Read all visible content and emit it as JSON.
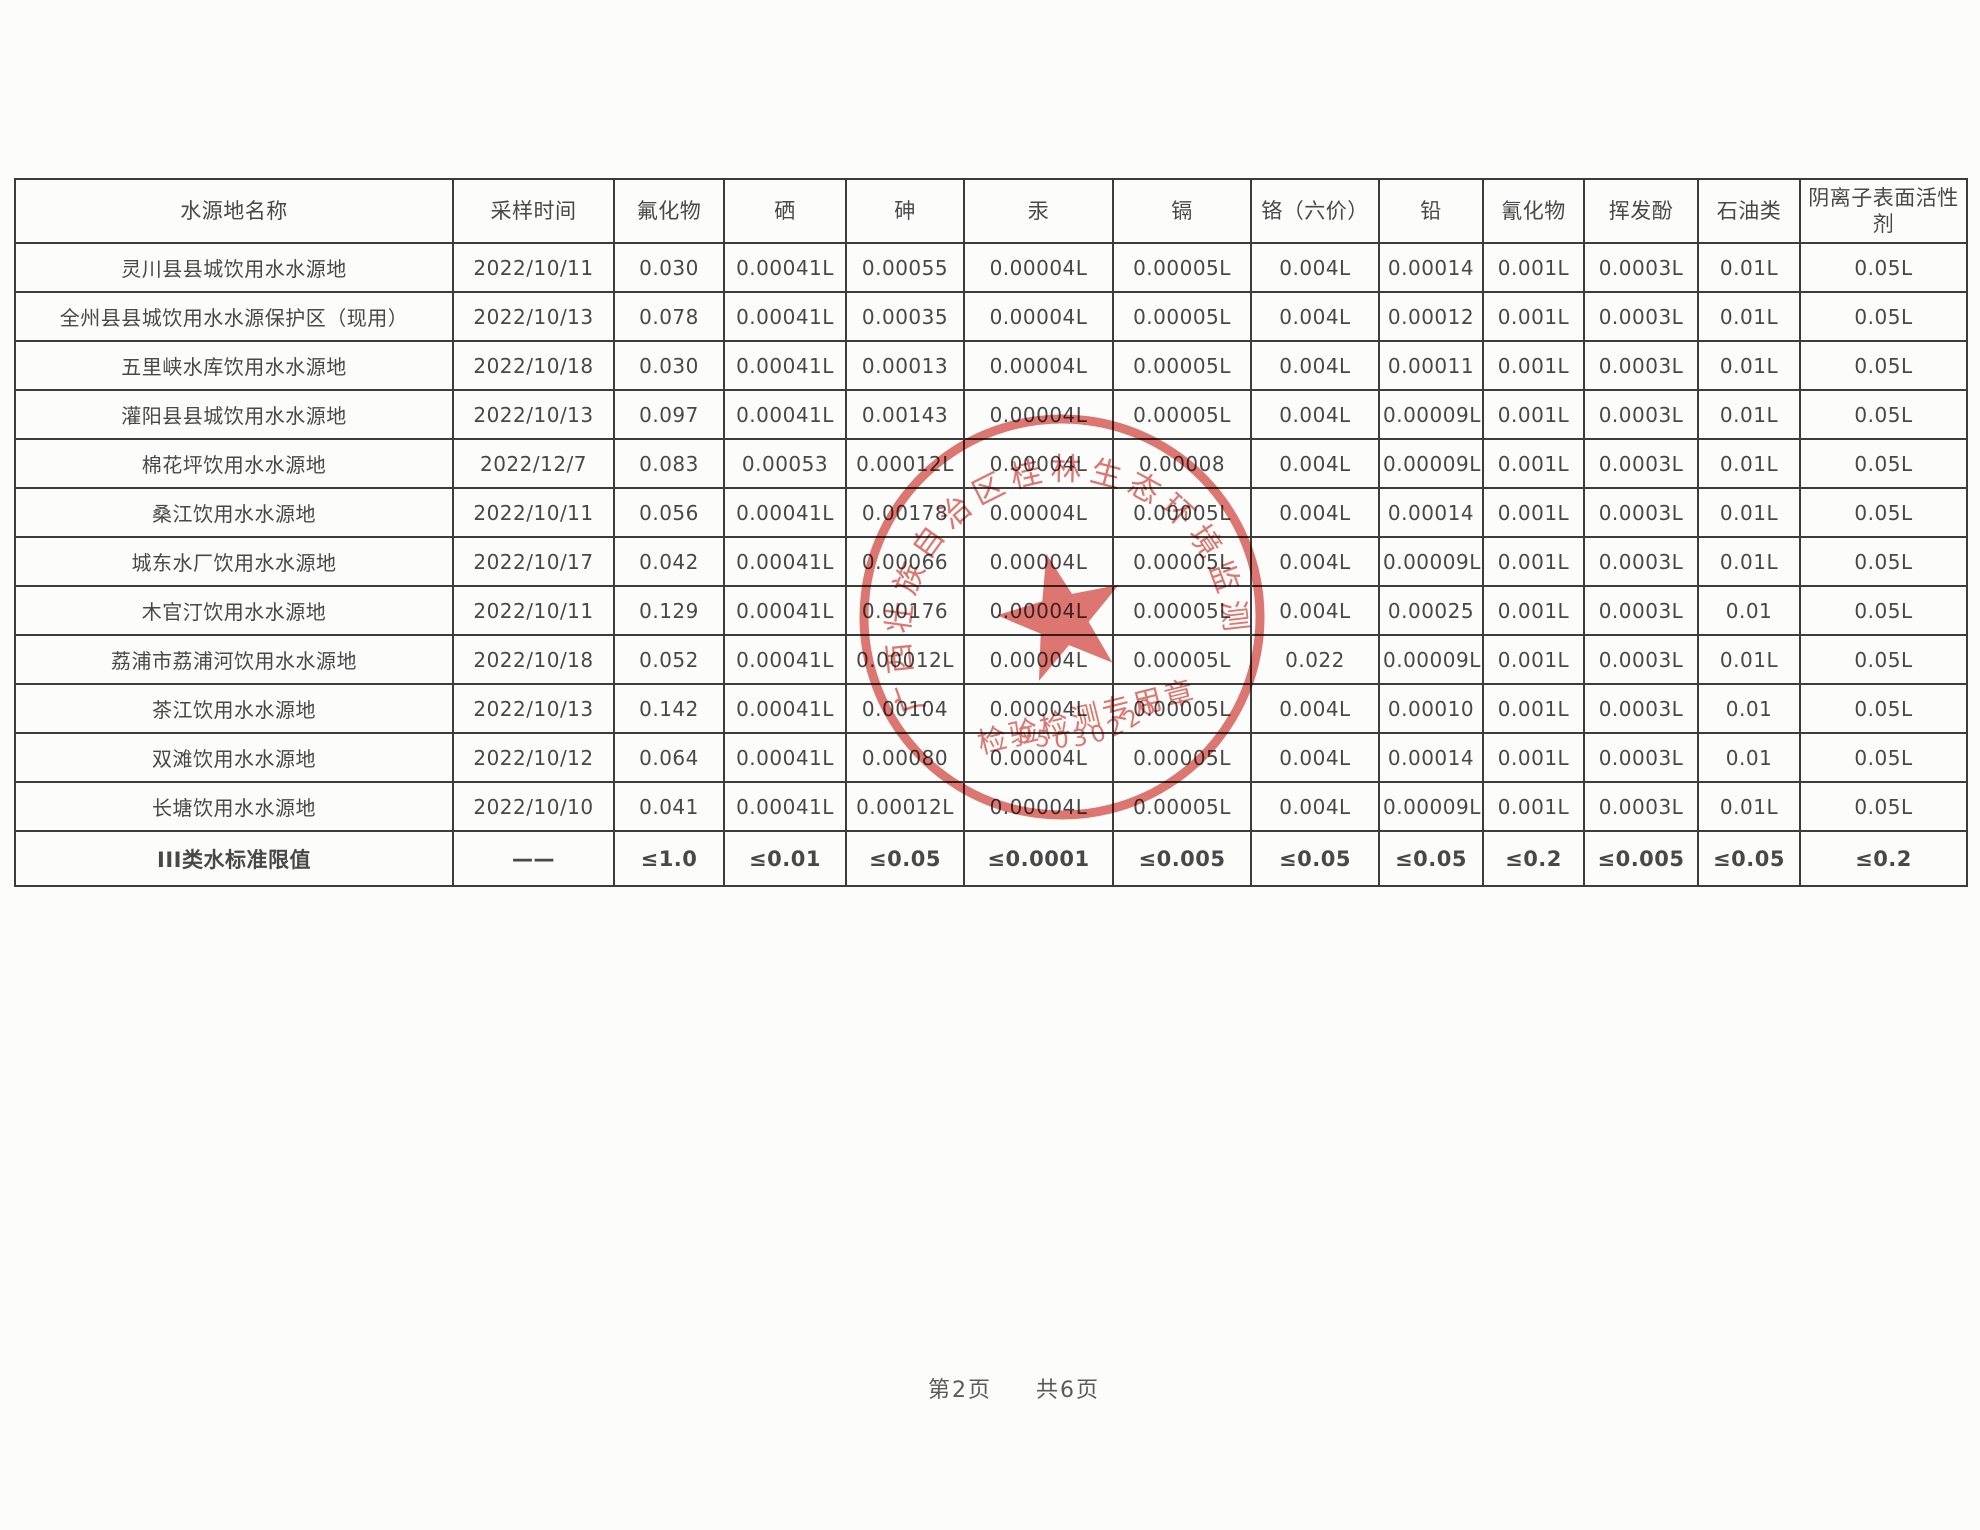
{
  "table": {
    "columns": [
      "水源地名称",
      "采样时间",
      "氟化物",
      "硒",
      "砷",
      "汞",
      "镉",
      "铬（六价）",
      "铅",
      "氰化物",
      "挥发酚",
      "石油类",
      "阴离子表面活性剂"
    ],
    "rows": [
      {
        "name": "灵川县县城饮用水水源地",
        "date": "2022/10/11",
        "values": [
          "0.030",
          "0.00041L",
          "0.00055",
          "0.00004L",
          "0.00005L",
          "0.004L",
          "0.00014",
          "0.001L",
          "0.0003L",
          "0.01L",
          "0.05L"
        ]
      },
      {
        "name": "全州县县城饮用水水源保护区（现用）",
        "date": "2022/10/13",
        "values": [
          "0.078",
          "0.00041L",
          "0.00035",
          "0.00004L",
          "0.00005L",
          "0.004L",
          "0.00012",
          "0.001L",
          "0.0003L",
          "0.01L",
          "0.05L"
        ]
      },
      {
        "name": "五里峡水库饮用水水源地",
        "date": "2022/10/18",
        "values": [
          "0.030",
          "0.00041L",
          "0.00013",
          "0.00004L",
          "0.00005L",
          "0.004L",
          "0.00011",
          "0.001L",
          "0.0003L",
          "0.01L",
          "0.05L"
        ]
      },
      {
        "name": "灌阳县县城饮用水水源地",
        "date": "2022/10/13",
        "values": [
          "0.097",
          "0.00041L",
          "0.00143",
          "0.00004L",
          "0.00005L",
          "0.004L",
          "0.00009L",
          "0.001L",
          "0.0003L",
          "0.01L",
          "0.05L"
        ]
      },
      {
        "name": "棉花坪饮用水水源地",
        "date": "2022/12/7",
        "values": [
          "0.083",
          "0.00053",
          "0.00012L",
          "0.00004L",
          "0.00008",
          "0.004L",
          "0.00009L",
          "0.001L",
          "0.0003L",
          "0.01L",
          "0.05L"
        ]
      },
      {
        "name": "桑江饮用水水源地",
        "date": "2022/10/11",
        "values": [
          "0.056",
          "0.00041L",
          "0.00178",
          "0.00004L",
          "0.00005L",
          "0.004L",
          "0.00014",
          "0.001L",
          "0.0003L",
          "0.01L",
          "0.05L"
        ]
      },
      {
        "name": "城东水厂饮用水水源地",
        "date": "2022/10/17",
        "values": [
          "0.042",
          "0.00041L",
          "0.00066",
          "0.00004L",
          "0.00005L",
          "0.004L",
          "0.00009L",
          "0.001L",
          "0.0003L",
          "0.01L",
          "0.05L"
        ]
      },
      {
        "name": "木官汀饮用水水源地",
        "date": "2022/10/11",
        "values": [
          "0.129",
          "0.00041L",
          "0.00176",
          "0.00004L",
          "0.00005L",
          "0.004L",
          "0.00025",
          "0.001L",
          "0.0003L",
          "0.01",
          "0.05L"
        ]
      },
      {
        "name": "荔浦市荔浦河饮用水水源地",
        "date": "2022/10/18",
        "values": [
          "0.052",
          "0.00041L",
          "0.00012L",
          "0.00004L",
          "0.00005L",
          "0.022",
          "0.00009L",
          "0.001L",
          "0.0003L",
          "0.01L",
          "0.05L"
        ]
      },
      {
        "name": "茶江饮用水水源地",
        "date": "2022/10/13",
        "values": [
          "0.142",
          "0.00041L",
          "0.00104",
          "0.00004L",
          "0.00005L",
          "0.004L",
          "0.00010",
          "0.001L",
          "0.0003L",
          "0.01",
          "0.05L"
        ]
      },
      {
        "name": "双滩饮用水水源地",
        "date": "2022/10/12",
        "values": [
          "0.064",
          "0.00041L",
          "0.00080",
          "0.00004L",
          "0.00005L",
          "0.004L",
          "0.00014",
          "0.001L",
          "0.0003L",
          "0.01",
          "0.05L"
        ]
      },
      {
        "name": "长塘饮用水水源地",
        "date": "2022/10/10",
        "values": [
          "0.041",
          "0.00041L",
          "0.00012L",
          "0.00004L",
          "0.00005L",
          "0.004L",
          "0.00009L",
          "0.001L",
          "0.0003L",
          "0.01L",
          "0.05L"
        ]
      }
    ],
    "limit_row": {
      "name": "III类水标准限值",
      "date": "——",
      "values": [
        "≤1.0",
        "≤0.01",
        "≤0.05",
        "≤0.0001",
        "≤0.005",
        "≤0.05",
        "≤0.05",
        "≤0.2",
        "≤0.005",
        "≤0.05",
        "≤0.2"
      ]
    }
  },
  "stamp": {
    "ring_text": "广西壮族自治区桂林生态环境监测中心",
    "label": "检验检测专用章",
    "code": "95030220",
    "color": "#d9554e"
  },
  "footer": {
    "page": "第2页",
    "total": "共6页"
  }
}
